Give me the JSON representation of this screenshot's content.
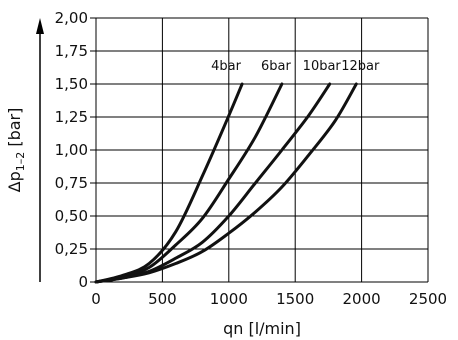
{
  "chart_data": {
    "type": "line",
    "xlabel": "qn [l/min]",
    "ylabel_main": "Δp",
    "ylabel_sub": "1–2",
    "ylabel_unit": " [bar]",
    "xlim": [
      0,
      2500
    ],
    "ylim": [
      0,
      2.0
    ],
    "x_ticks": [
      0,
      500,
      1000,
      1500,
      2000,
      2500
    ],
    "x_tick_labels": [
      "0",
      "500",
      "1000",
      "1500",
      "2000",
      "2500"
    ],
    "y_ticks": [
      0,
      0.25,
      0.5,
      0.75,
      1.0,
      1.25,
      1.5,
      1.75,
      2.0
    ],
    "y_tick_labels": [
      "0",
      "0,25",
      "0,50",
      "0,75",
      "1,00",
      "1,25",
      "1,50",
      "1,75",
      "2,00"
    ],
    "grid": true,
    "series": [
      {
        "name": "4bar",
        "x": [
          0,
          200,
          400,
          600,
          800,
          1000,
          1100
        ],
        "y": [
          0,
          0.05,
          0.14,
          0.38,
          0.8,
          1.26,
          1.5
        ]
      },
      {
        "name": "6bar",
        "x": [
          0,
          200,
          400,
          600,
          800,
          1000,
          1200,
          1400
        ],
        "y": [
          0,
          0.04,
          0.11,
          0.28,
          0.48,
          0.78,
          1.1,
          1.5
        ]
      },
      {
        "name": "10bar",
        "x": [
          0,
          200,
          400,
          600,
          800,
          1000,
          1200,
          1400,
          1600,
          1760
        ],
        "y": [
          0,
          0.03,
          0.08,
          0.18,
          0.3,
          0.5,
          0.75,
          1.0,
          1.26,
          1.5
        ]
      },
      {
        "name": "12bar",
        "x": [
          0,
          200,
          400,
          600,
          800,
          1000,
          1200,
          1400,
          1600,
          1800,
          1960
        ],
        "y": [
          0,
          0.03,
          0.07,
          0.14,
          0.23,
          0.37,
          0.53,
          0.72,
          0.96,
          1.22,
          1.5
        ]
      }
    ]
  }
}
